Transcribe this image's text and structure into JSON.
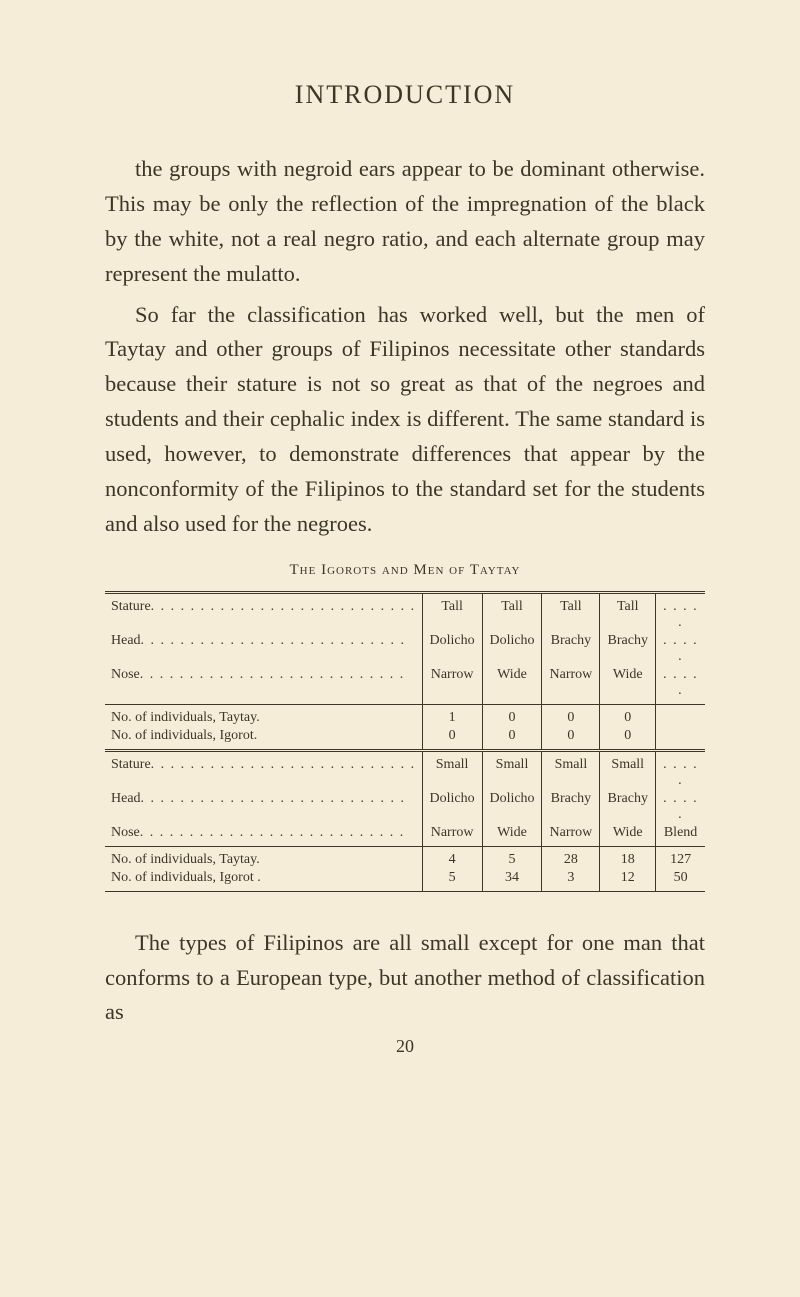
{
  "header": "INTRODUCTION",
  "paragraph1": "the groups with negroid ears appear to be dom­inant otherwise. This may be only the reflec­tion of the impregnation of the black by the white, not a real negro ratio, and each alter­nate group may represent the mulatto.",
  "paragraph2": "So far the classification has worked well, but the men of Taytay and other groups of Fili­pinos necessitate other standards because their stature is not so great as that of the negroes and students and their cephalic index is dif­ferent. The same standard is used, however, to demonstrate differences that appear by the nonconformity of the Filipinos to the stand­ard set for the students and also used for the negroes.",
  "tableCaption": "The Igorots and Men of Taytay",
  "rowLabels": {
    "stature": "Stature",
    "head": "Head",
    "nose": "Nose",
    "indivTaytay": "No. of individuals, Taytay.",
    "indivIgorot": "No. of individuals, Igorot.",
    "indivTaytay2": "No. of individuals, Taytay.",
    "indivIgorot2": "No. of individuals, Igorot ."
  },
  "block1": {
    "stature": [
      "Tall",
      "Tall",
      "Tall",
      "Tall",
      ""
    ],
    "head": [
      "Dolicho",
      "Dolicho",
      "Brachy",
      "Brachy",
      ""
    ],
    "nose": [
      "Narrow",
      "Wide",
      "Narrow",
      "Wide",
      ""
    ],
    "taytay": [
      "1",
      "0",
      "0",
      "0",
      ""
    ],
    "igorot": [
      "0",
      "0",
      "0",
      "0",
      ""
    ]
  },
  "block2": {
    "stature": [
      "Small",
      "Small",
      "Small",
      "Small",
      ""
    ],
    "head": [
      "Dolicho",
      "Dolicho",
      "Brachy",
      "Brachy",
      ""
    ],
    "nose": [
      "Narrow",
      "Wide",
      "Narrow",
      "Wide",
      "Blend"
    ],
    "taytay": [
      "4",
      "5",
      "28",
      "18",
      "127"
    ],
    "igorot": [
      "5",
      "34",
      "3",
      "12",
      "50"
    ]
  },
  "paragraph3": "The types of Filipinos are all small except for one man that conforms to a European type, but another method of classification as",
  "pageNumber": "20",
  "dots": ". . . . . . . . . . . . . . . . . . . . . . . . . . .",
  "shortDots": ". . . . ."
}
